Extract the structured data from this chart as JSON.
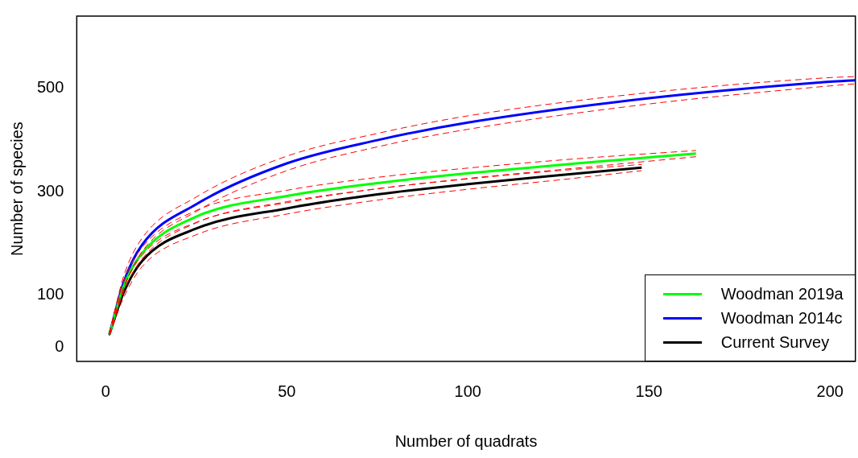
{
  "chart_data": {
    "type": "line",
    "xlabel": "Number of quadrats",
    "ylabel": "Number of species",
    "xlim": [
      -8,
      207
    ],
    "ylim": [
      -28,
      640
    ],
    "xticks": [
      0,
      50,
      100,
      150,
      200
    ],
    "yticks": [
      0,
      100,
      300,
      500
    ],
    "grid": false,
    "legend": "bottom right",
    "marker": "none",
    "line_style": "solid",
    "series": [
      {
        "color": "#ff0000",
        "line_style": "dashed",
        "x": [
          1,
          5,
          10,
          25,
          50,
          75,
          100,
          130,
          163
        ],
        "values": [
          22,
          108,
          170,
          240,
          281,
          306,
          326,
          346,
          368
        ]
      },
      {
        "color": "#ff0000",
        "line_style": "dashed",
        "x": [
          1,
          5,
          10,
          25,
          50,
          75,
          100,
          130,
          163
        ],
        "values": [
          26,
          128,
          192,
          264,
          303,
          328,
          346,
          364,
          380
        ]
      },
      {
        "color": "#ff0000",
        "line_style": "dashed",
        "x": [
          1,
          5,
          10,
          25,
          50,
          75,
          100,
          150,
          200,
          207
        ],
        "values": [
          22,
          114,
          184,
          262,
          341,
          387,
          421,
          470,
          505,
          509
        ]
      },
      {
        "color": "#ff0000",
        "line_style": "dashed",
        "x": [
          1,
          5,
          10,
          25,
          50,
          75,
          100,
          150,
          200,
          207
        ],
        "values": [
          26,
          138,
          210,
          290,
          369,
          413,
          447,
          492,
          521,
          523
        ]
      },
      {
        "color": "#ff0000",
        "line_style": "dashed",
        "x": [
          1,
          5,
          10,
          25,
          50,
          75,
          100,
          125,
          148
        ],
        "values": [
          22,
          96,
          155,
          217,
          257,
          284,
          305,
          323,
          341
        ]
      },
      {
        "color": "#ff0000",
        "line_style": "dashed",
        "x": [
          1,
          5,
          10,
          25,
          50,
          75,
          100,
          125,
          148
        ],
        "values": [
          26,
          116,
          177,
          241,
          279,
          306,
          325,
          341,
          353
        ]
      },
      {
        "name": "Woodman 2019a",
        "color": "#00ff00",
        "x": [
          1,
          5,
          10,
          25,
          50,
          75,
          100,
          130,
          163
        ],
        "values": [
          24,
          118,
          181,
          252,
          292,
          317,
          336,
          355,
          374
        ]
      },
      {
        "name": "Woodman 2014c",
        "color": "#0000ff",
        "x": [
          1,
          5,
          10,
          25,
          50,
          75,
          100,
          150,
          200,
          207
        ],
        "values": [
          24,
          126,
          197,
          276,
          355,
          400,
          434,
          481,
          513,
          516
        ]
      },
      {
        "name": "Current Survey",
        "color": "#000000",
        "x": [
          1,
          5,
          10,
          25,
          50,
          75,
          100,
          125,
          148
        ],
        "values": [
          24,
          106,
          166,
          229,
          268,
          295,
          315,
          332,
          347
        ]
      }
    ]
  }
}
